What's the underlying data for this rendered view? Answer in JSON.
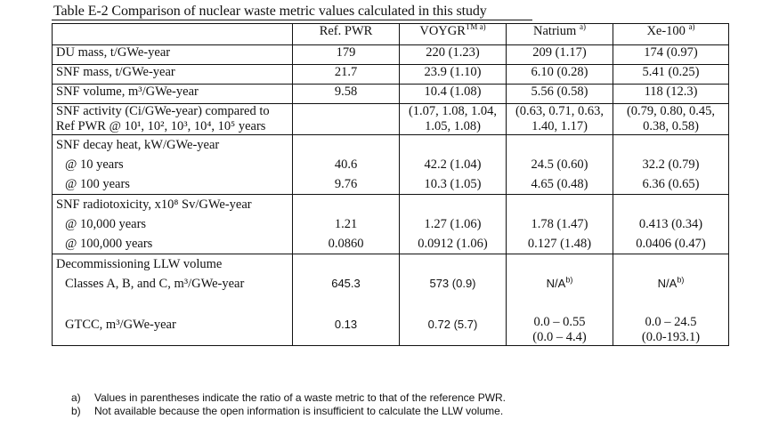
{
  "caption": "Table E-2 Comparison of nuclear waste metric values calculated in this study",
  "columns": [
    {
      "label": "",
      "sup": ""
    },
    {
      "label": "Ref. PWR",
      "sup": ""
    },
    {
      "label": "VOYGR",
      "sup": "TM a)"
    },
    {
      "label": "Natrium",
      "sup": "a)"
    },
    {
      "label": "Xe-100",
      "sup": "a)"
    }
  ],
  "rows": {
    "du_mass": {
      "label": "DU mass, t/GWe-year",
      "values": [
        "179",
        "220 (1.23)",
        "209 (1.17)",
        "174 (0.97)"
      ]
    },
    "snf_mass": {
      "label": "SNF mass, t/GWe-year",
      "values": [
        "21.7",
        "23.9 (1.10)",
        "6.10 (0.28)",
        "5.41 (0.25)"
      ]
    },
    "snf_volume": {
      "label": "SNF volume, m³/GWe-year",
      "values": [
        "9.58",
        "10.4 (1.08)",
        "5.56 (0.58)",
        "118 (12.3)"
      ]
    },
    "snf_activity": {
      "label_line1": "SNF activity (Ci/GWe-year) compared to",
      "label_line2": "Ref PWR @ 10¹, 10², 10³, 10⁴, 10⁵ years",
      "values": [
        "",
        "(1.07, 1.08, 1.04, 1.05, 1.08)",
        "(0.63, 0.71, 0.63, 1.40, 1.17)",
        "(0.79, 0.80, 0.45, 0.38, 0.58)"
      ]
    },
    "decay_heat": {
      "label": "SNF decay heat, kW/GWe-year",
      "sub1": "@ 10 years",
      "sub2": "@ 100 years",
      "values1": [
        "40.6",
        "42.2 (1.04)",
        "24.5 (0.60)",
        "32.2 (0.79)"
      ],
      "values2": [
        "9.76",
        "10.3 (1.05)",
        "4.65 (0.48)",
        "6.36 (0.65)"
      ]
    },
    "radiotoxicity": {
      "label": "SNF radiotoxicity, x10⁸ Sv/GWe-year",
      "sub1": "@ 10,000 years",
      "sub2": "@ 100,000 years",
      "values1": [
        "1.21",
        "1.27 (1.06)",
        "1.78 (1.47)",
        "0.413 (0.34)"
      ],
      "values2": [
        "0.0860",
        "0.0912 (1.06)",
        "0.127 (1.48)",
        "0.0406 (0.47)"
      ]
    },
    "llw": {
      "label": "Decommissioning LLW volume",
      "sub1": "Classes A, B, and C, m³/GWe-year",
      "sub2": "GTCC, m³/GWe-year",
      "values1": [
        "645.3",
        "573 (0.9)",
        "N/A",
        "N/A"
      ],
      "values1_sup": [
        "",
        "",
        "b)",
        "b)"
      ],
      "values2": [
        "0.13",
        "0.72 (5.7)",
        "0.0 – 0.55",
        "0.0 – 24.5"
      ],
      "values2_extra": [
        "",
        "",
        "(0.0 – 4.4)",
        "(0.0-193.1)"
      ]
    }
  },
  "notes": [
    {
      "marker": "a)",
      "text": "Values in parentheses indicate the ratio of a waste metric to that of the reference PWR."
    },
    {
      "marker": "b)",
      "text": "Not available because the open information is insufficient to calculate the LLW volume."
    }
  ]
}
